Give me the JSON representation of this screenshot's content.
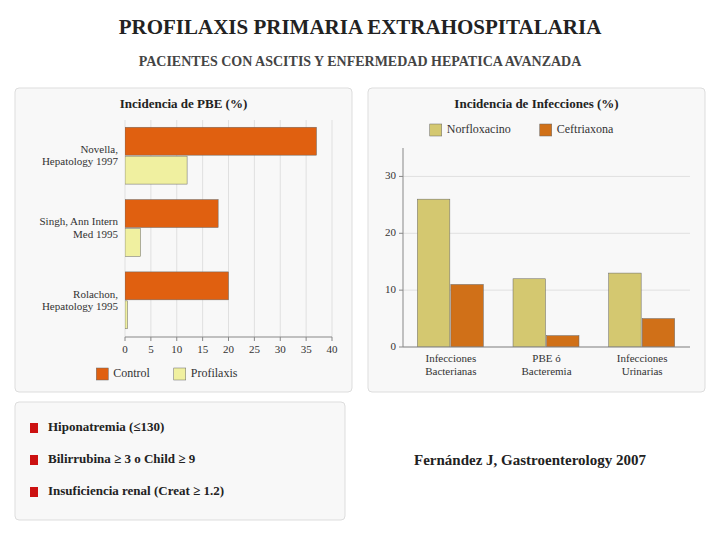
{
  "title": "PROFILAXIS PRIMARIA EXTRAHOSPITALARIA",
  "subtitle": "PACIENTES CON ASCITIS Y ENFERMEDAD HEPATICA AVANZADA",
  "annotations": [
    "Hiponatremia (≤130)",
    "Bilirrubina ≥ 3 o Child ≥ 9",
    "Insuficiencia renal (Creat ≥ 1.2)",
    "Fernández J, Gastroenterology 2007"
  ],
  "chart_data": [
    {
      "type": "bar",
      "orientation": "horizontal",
      "title": "Incidencia de PBE (%)",
      "categories": [
        "Rolachon,\nHepatology 1995",
        "Singh, Ann Intern\nMed 1995",
        "Novella,\nHepatology 1997"
      ],
      "series": [
        {
          "name": "Control",
          "color": "#e06010",
          "values": [
            20,
            18,
            37
          ]
        },
        {
          "name": "Profilaxis",
          "color": "#f0f0a0",
          "values": [
            0.5,
            3,
            12
          ]
        }
      ],
      "xlim": [
        0,
        40
      ],
      "xticks": [
        0,
        5,
        10,
        15,
        20,
        25,
        30,
        35,
        40
      ],
      "grid": true,
      "legend": "bottom"
    },
    {
      "type": "bar",
      "title": "Incidencia de Infecciones (%)",
      "categories": [
        "Infecciones\nBacterianas",
        "PBE ó\nBacteremia",
        "Infecciones\nUrinarias"
      ],
      "series": [
        {
          "name": "Norfloxacino",
          "color": "#d4c870",
          "values": [
            26,
            12,
            13
          ]
        },
        {
          "name": "Ceftriaxona",
          "color": "#d07018",
          "values": [
            11,
            2,
            5
          ]
        }
      ],
      "ylim": [
        0,
        35
      ],
      "yticks": [
        0,
        10,
        20,
        30
      ],
      "grid": true,
      "legend": "top"
    }
  ]
}
